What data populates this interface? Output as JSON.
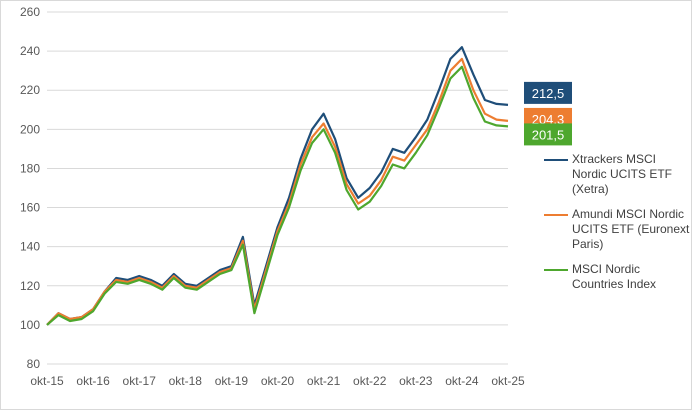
{
  "chart_data": {
    "type": "line",
    "title": "",
    "xlabel": "",
    "ylabel": "",
    "ylim": [
      80,
      260
    ],
    "yticks": [
      "80",
      "100",
      "120",
      "140",
      "160",
      "180",
      "200",
      "220",
      "240",
      "260"
    ],
    "xticks": [
      "okt-15",
      "okt-16",
      "okt-17",
      "okt-18",
      "okt-19",
      "okt-20",
      "okt-21",
      "okt-22",
      "okt-23",
      "okt-24",
      "okt-25"
    ],
    "grid": "horizontal",
    "legend_position": "right",
    "x": [
      "okt-15",
      "jan-16",
      "apr-16",
      "jul-16",
      "okt-16",
      "jan-17",
      "apr-17",
      "jul-17",
      "okt-17",
      "jan-18",
      "apr-18",
      "jul-18",
      "okt-18",
      "jan-19",
      "apr-19",
      "jul-19",
      "okt-19",
      "jan-20",
      "apr-20",
      "jul-20",
      "okt-20",
      "jan-21",
      "apr-21",
      "jul-21",
      "okt-21",
      "jan-22",
      "apr-22",
      "jul-22",
      "okt-22",
      "jan-23",
      "apr-23",
      "jul-23",
      "okt-23",
      "jan-24",
      "apr-24",
      "jul-24",
      "okt-24",
      "jan-25",
      "apr-25",
      "jul-25",
      "okt-25"
    ],
    "series": [
      {
        "name": "Xtrackers MSCI Nordic UCITS ETF (Xetra)",
        "color": "#1f4e79",
        "end_label": "212,5",
        "values": [
          100,
          106,
          103,
          104,
          108,
          117,
          124,
          123,
          125,
          123,
          120,
          126,
          121,
          120,
          124,
          128,
          130,
          145,
          110,
          130,
          150,
          165,
          185,
          200,
          208,
          195,
          175,
          165,
          170,
          178,
          190,
          188,
          196,
          205,
          220,
          236,
          242,
          228,
          215,
          213,
          212.5
        ]
      },
      {
        "name": "Amundi MSCI Nordic UCITS ETF (Euronext Paris)",
        "color": "#ed7d31",
        "end_label": "204,3",
        "values": [
          100,
          106,
          103,
          104,
          108,
          117,
          123,
          122,
          124,
          122,
          119,
          125,
          120,
          119,
          123,
          127,
          129,
          143,
          108,
          128,
          148,
          162,
          182,
          196,
          203,
          191,
          172,
          162,
          166,
          174,
          186,
          184,
          192,
          200,
          214,
          230,
          236,
          220,
          208,
          205,
          204.3
        ]
      },
      {
        "name": "MSCI Nordic Countries Index",
        "color": "#4ea72e",
        "end_label": "201,5",
        "values": [
          100,
          105,
          102,
          103,
          107,
          116,
          122,
          121,
          123,
          121,
          118,
          124,
          119,
          118,
          122,
          126,
          128,
          141,
          106,
          126,
          146,
          160,
          179,
          193,
          200,
          188,
          169,
          159,
          163,
          171,
          182,
          180,
          188,
          197,
          211,
          226,
          232,
          216,
          204,
          202,
          201.5
        ]
      }
    ]
  }
}
